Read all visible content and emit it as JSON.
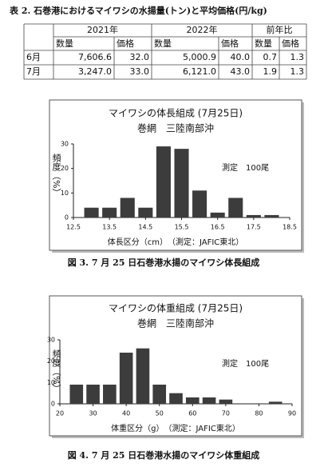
{
  "table": {
    "title": "表 2. 石巻港におけるマイワシの水揚量(トン)と平均価格(円/kg)",
    "groups": [
      "2021年",
      "2022年",
      "前年比"
    ],
    "subheaders": [
      "数量",
      "価格",
      "数量",
      "価格",
      "数量",
      "価格"
    ],
    "rows": [
      [
        "6月",
        "7,606.6",
        "32.0",
        "5,000.9",
        "40.0",
        "0.7",
        "1.3"
      ],
      [
        "7月",
        "3,247.0",
        "33.0",
        "6,121.0",
        "43.0",
        "1.9",
        "1.3"
      ]
    ]
  },
  "chart_data": [
    {
      "type": "bar",
      "title": "マイワシの体長組成 (7月25日)",
      "subtitle": "巻網　三陸南部沖",
      "annotation": "測定　100尾",
      "y_label": "頻度（%）",
      "x_label": "体長区分（cm）　（測定：JAFIC東北）",
      "x": [
        13.0,
        13.5,
        14.0,
        14.5,
        15.0,
        15.5,
        16.0,
        16.5,
        17.0,
        17.5,
        18.0
      ],
      "values": [
        4,
        4,
        8,
        4,
        29,
        28,
        11,
        2,
        8,
        1,
        1
      ],
      "color": "#3c3c3c",
      "xlim": [
        12.5,
        18.5
      ],
      "xticks": [
        12.5,
        13.5,
        14.5,
        15.5,
        16.5,
        17.5,
        18.5
      ],
      "ylim": [
        0,
        30
      ],
      "yticks": [
        0,
        10,
        20,
        30
      ]
    },
    {
      "type": "bar",
      "title": "マイワシの体重組成 (7月25日)",
      "subtitle": "巻網　三陸南部沖",
      "annotation": "測定　100尾",
      "y_label": "頻度（%）",
      "x_label": "体重区分（g）　（測定：JAFIC東北）",
      "x": [
        25,
        30,
        35,
        40,
        45,
        50,
        55,
        60,
        65,
        70,
        75,
        80,
        85
      ],
      "values": [
        9,
        9,
        9,
        24,
        26,
        9,
        5,
        3,
        3,
        2,
        0,
        0,
        1
      ],
      "color": "#3c3c3c",
      "xlim": [
        20,
        90
      ],
      "xticks": [
        20,
        30,
        40,
        50,
        60,
        70,
        80,
        90
      ],
      "ylim": [
        0,
        30
      ],
      "yticks": [
        0,
        10,
        20,
        30
      ]
    }
  ],
  "captions": [
    "図 3. 7 月 25 日石巻港水揚のマイワシ体長組成",
    "図 4. 7 月 25 日石巻港水揚のマイワシ体重組成"
  ]
}
